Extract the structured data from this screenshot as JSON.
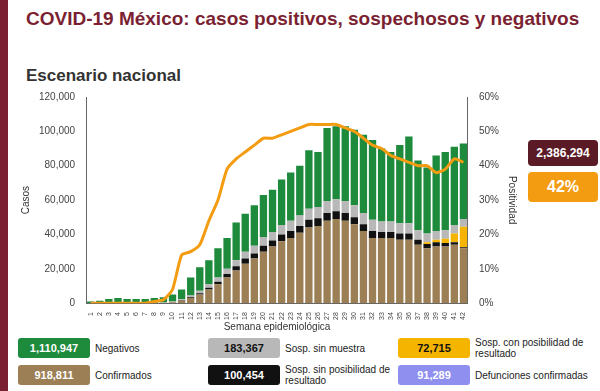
{
  "chart_data": {
    "type": "bar",
    "title": "COVID-19 México: casos positivos, sospechosos y negativos",
    "subtitle": "Escenario nacional",
    "x_label": "Semana epidemiológica",
    "y_label": "Casos",
    "y2_label": "Positividad",
    "stacked": true,
    "grid": false,
    "legend": "bottom",
    "categories": [
      "1",
      "2",
      "3",
      "4",
      "5",
      "6",
      "7",
      "8",
      "9",
      "10",
      "11",
      "12",
      "13",
      "14",
      "15",
      "16",
      "17",
      "18",
      "19",
      "20",
      "21",
      "22",
      "23",
      "24",
      "25",
      "26",
      "27",
      "28",
      "29",
      "30",
      "31",
      "32",
      "33",
      "34",
      "35",
      "36",
      "37",
      "38",
      "39",
      "40",
      "41",
      "42"
    ],
    "ylim": [
      0,
      120000
    ],
    "yticks": [
      0,
      {
        "value": 20000,
        "label": "20,000"
      },
      {
        "value": 40000,
        "label": "40,000"
      },
      {
        "value": 60000,
        "label": "60,000"
      },
      {
        "value": 80000,
        "label": "80,000"
      },
      {
        "value": 100000,
        "label": "100,000"
      },
      {
        "value": 120000,
        "label": "120,000"
      }
    ],
    "y2lim": [
      0,
      60
    ],
    "y2ticks": [
      {
        "value": 0,
        "label": "0%"
      },
      {
        "value": 10,
        "label": "10%"
      },
      {
        "value": 20,
        "label": "20%"
      },
      {
        "value": 30,
        "label": "30%"
      },
      {
        "value": 40,
        "label": "40%"
      },
      {
        "value": 50,
        "label": "50%"
      },
      {
        "value": 60,
        "label": "60%"
      }
    ],
    "series": [
      {
        "name": "Confirmados",
        "color": "#9c7f55",
        "total": "918,811",
        "values": [
          0,
          0,
          0,
          0,
          0,
          0,
          0,
          10,
          100,
          500,
          1500,
          3000,
          5000,
          8000,
          11000,
          15000,
          19000,
          23000,
          26000,
          30000,
          33000,
          36000,
          38000,
          41000,
          44000,
          45000,
          48000,
          49000,
          48000,
          46000,
          42000,
          38000,
          38000,
          38000,
          37000,
          37000,
          34000,
          32000,
          33000,
          33000,
          34000,
          32000
        ]
      },
      {
        "name": "Sosp. sin posibilidad de resultado",
        "color": "#111111",
        "total": "100,454",
        "values": [
          0,
          0,
          0,
          0,
          0,
          0,
          0,
          0,
          0,
          100,
          200,
          500,
          800,
          1000,
          1500,
          2000,
          2500,
          3000,
          3000,
          3500,
          3500,
          4000,
          4000,
          4000,
          4500,
          4500,
          4500,
          4500,
          4500,
          4000,
          4000,
          4000,
          3500,
          3500,
          3500,
          3500,
          3000,
          2500,
          2500,
          2000,
          1500,
          500
        ]
      },
      {
        "name": "Sosp. con posibilidad de resultado",
        "color": "#f5b400",
        "total": "72,715",
        "values": [
          0,
          0,
          0,
          0,
          0,
          0,
          0,
          0,
          0,
          0,
          0,
          0,
          0,
          0,
          0,
          0,
          0,
          0,
          0,
          0,
          0,
          0,
          0,
          0,
          0,
          0,
          0,
          0,
          0,
          0,
          0,
          0,
          0,
          0,
          0,
          0,
          0,
          1000,
          1500,
          2500,
          5000,
          12000
        ]
      },
      {
        "name": "Sosp. sin muestra",
        "color": "#b8b8b8",
        "total": "183,367",
        "values": [
          100,
          100,
          200,
          200,
          200,
          200,
          200,
          200,
          300,
          400,
          600,
          1000,
          1500,
          2000,
          2500,
          3000,
          3500,
          4000,
          4500,
          5000,
          5000,
          5500,
          6000,
          6000,
          6500,
          6500,
          7000,
          7000,
          7000,
          7000,
          6500,
          6500,
          6000,
          6000,
          6000,
          6000,
          5500,
          5000,
          5000,
          5000,
          5000,
          4500
        ]
      },
      {
        "name": "Negativos",
        "color": "#1e8a3c",
        "total": "1,110,947",
        "values": [
          900,
          1400,
          2300,
          2800,
          2300,
          2300,
          2300,
          2800,
          3100,
          4000,
          5700,
          10500,
          13700,
          14000,
          17000,
          18000,
          22000,
          22000,
          23500,
          24500,
          24500,
          26500,
          28000,
          29000,
          34000,
          32000,
          42500,
          42500,
          43500,
          44000,
          45500,
          46500,
          42500,
          40500,
          45500,
          50500,
          40500,
          38500,
          44000,
          45500,
          45500,
          44000
        ]
      },
      {
        "name": "Positividad",
        "type": "line",
        "axis": "y2",
        "color": "#f39c12",
        "values": [
          0,
          0,
          0,
          0,
          0,
          0,
          0,
          0.5,
          1,
          4,
          14,
          15,
          17,
          24,
          30,
          39,
          42,
          44,
          46,
          48,
          48,
          49,
          50,
          51,
          52,
          52,
          52,
          52,
          51,
          50,
          48,
          46,
          45,
          43,
          42,
          41,
          40,
          40,
          38,
          39,
          42,
          41
        ]
      }
    ],
    "deaths": {
      "name": "Defunciones confirmadas",
      "color": "#8f8fef",
      "total": "91,289"
    },
    "total_label": "2,386,294",
    "positivity_label": "42%"
  }
}
